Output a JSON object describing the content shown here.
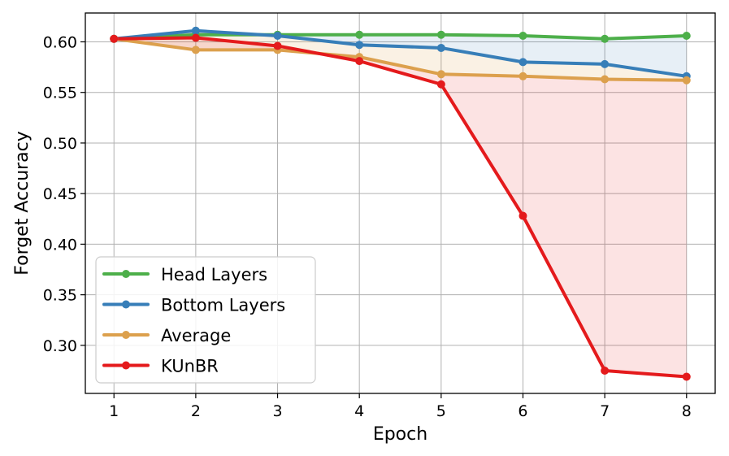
{
  "chart_data": {
    "type": "line",
    "title": "",
    "xlabel": "Epoch",
    "ylabel": "Forget Accuracy",
    "x": [
      1,
      2,
      3,
      4,
      5,
      6,
      7,
      8
    ],
    "xlim": [
      0.65,
      8.35
    ],
    "ylim": [
      0.2525,
      0.6285
    ],
    "xticks": [
      1,
      2,
      3,
      4,
      5,
      6,
      7,
      8
    ],
    "yticks": [
      0.3,
      0.35,
      0.4,
      0.45,
      0.5,
      0.55,
      0.6
    ],
    "grid": true,
    "legend_position": "lower-left",
    "series": [
      {
        "name": "Head Layers",
        "color": "#4daf4a",
        "values": [
          0.603,
          0.607,
          0.607,
          0.607,
          0.607,
          0.606,
          0.603,
          0.606
        ]
      },
      {
        "name": "Bottom Layers",
        "color": "#377eb8",
        "values": [
          0.603,
          0.611,
          0.606,
          0.597,
          0.594,
          0.58,
          0.578,
          0.566
        ]
      },
      {
        "name": "Average",
        "color": "#dca04d",
        "values": [
          0.603,
          0.592,
          0.592,
          0.585,
          0.568,
          0.566,
          0.563,
          0.562
        ]
      },
      {
        "name": "KUnBR",
        "color": "#e41a1c",
        "values": [
          0.603,
          0.604,
          0.596,
          0.581,
          0.558,
          0.428,
          0.275,
          0.269
        ]
      }
    ],
    "shaded_regions": [
      {
        "between": [
          "Head Layers",
          "Bottom Layers"
        ],
        "color": "#377eb8",
        "opacity": 0.12
      },
      {
        "between": [
          "Bottom Layers",
          "Average"
        ],
        "color": "#dca04d",
        "opacity": 0.15
      },
      {
        "between": [
          "Average",
          "KUnBR"
        ],
        "color": "#e41a1c",
        "opacity": 0.12
      }
    ]
  }
}
